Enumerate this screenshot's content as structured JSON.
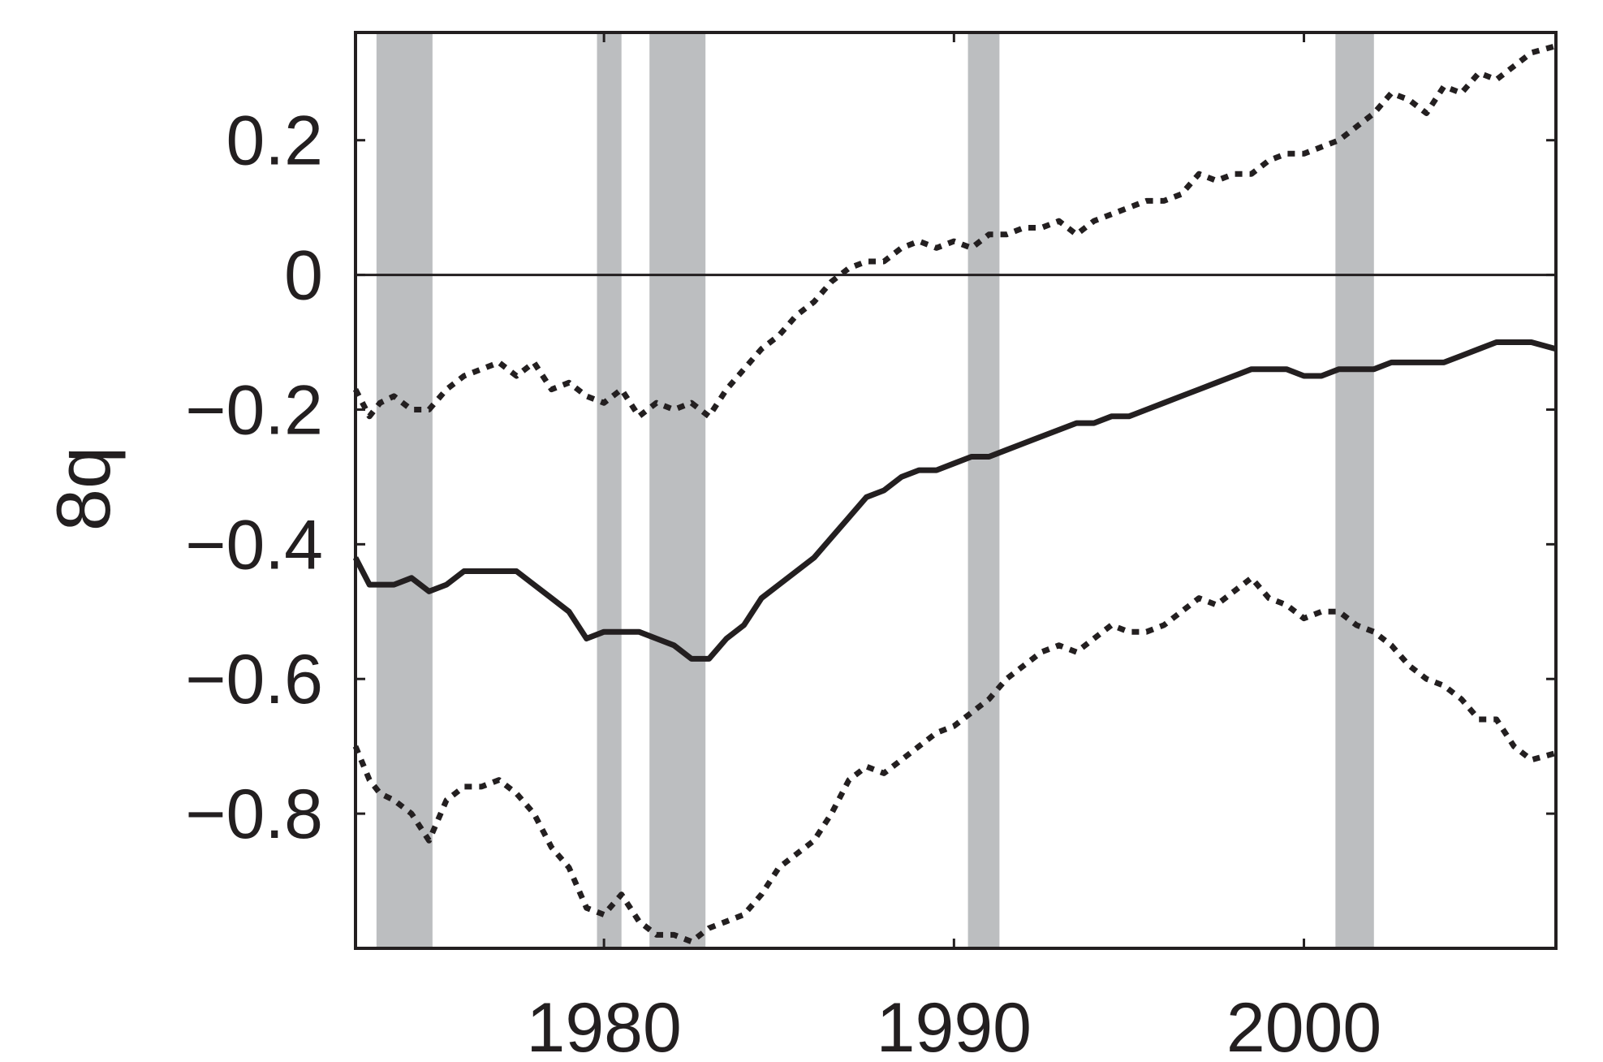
{
  "chart_data": {
    "type": "line",
    "title": "",
    "xlabel": "",
    "ylabel": "8q",
    "xlim": [
      1972.9,
      2007.2
    ],
    "ylim": [
      -1.0,
      0.36
    ],
    "x_ticks": [
      1980,
      1990,
      2000
    ],
    "x_tick_labels": [
      "1980",
      "1990",
      "2000"
    ],
    "y_ticks": [
      0.2,
      0,
      -0.2,
      -0.4,
      -0.6,
      -0.8
    ],
    "y_tick_labels": [
      "0.2",
      "0",
      "−0.2",
      "−0.4",
      "−0.6",
      "−0.8"
    ],
    "grid": false,
    "zero_line": true,
    "shaded_periods": [
      {
        "start": 1973.5,
        "end": 1975.1
      },
      {
        "start": 1979.8,
        "end": 1980.5
      },
      {
        "start": 1981.3,
        "end": 1982.9
      },
      {
        "start": 1990.4,
        "end": 1991.3
      },
      {
        "start": 2000.9,
        "end": 2002.0
      }
    ],
    "series": [
      {
        "style": "solid",
        "x": [
          1972.9,
          1973.3,
          1973.6,
          1974.0,
          1974.5,
          1975.0,
          1975.5,
          1976.0,
          1976.5,
          1977.0,
          1977.5,
          1978.0,
          1978.5,
          1979.0,
          1979.5,
          1980.0,
          1980.5,
          1981.0,
          1981.5,
          1982.0,
          1982.5,
          1983.0,
          1983.5,
          1984.0,
          1984.5,
          1985.0,
          1985.5,
          1986.0,
          1986.5,
          1987.0,
          1987.5,
          1988.0,
          1988.5,
          1989.0,
          1989.5,
          1990.0,
          1990.5,
          1991.0,
          1991.5,
          1992.0,
          1992.5,
          1993.0,
          1993.5,
          1994.0,
          1994.5,
          1995.0,
          1995.5,
          1996.0,
          1996.5,
          1997.0,
          1997.5,
          1998.0,
          1998.5,
          1999.0,
          1999.5,
          2000.0,
          2000.5,
          2001.0,
          2001.5,
          2002.0,
          2002.5,
          2003.0,
          2003.5,
          2004.0,
          2004.5,
          2005.0,
          2005.5,
          2006.0,
          2006.5,
          2007.2
        ],
        "y": [
          -0.42,
          -0.46,
          -0.46,
          -0.46,
          -0.45,
          -0.47,
          -0.46,
          -0.44,
          -0.44,
          -0.44,
          -0.44,
          -0.46,
          -0.48,
          -0.5,
          -0.54,
          -0.53,
          -0.53,
          -0.53,
          -0.54,
          -0.55,
          -0.57,
          -0.57,
          -0.54,
          -0.52,
          -0.48,
          -0.46,
          -0.44,
          -0.42,
          -0.39,
          -0.36,
          -0.33,
          -0.32,
          -0.3,
          -0.29,
          -0.29,
          -0.28,
          -0.27,
          -0.27,
          -0.26,
          -0.25,
          -0.24,
          -0.23,
          -0.22,
          -0.22,
          -0.21,
          -0.21,
          -0.2,
          -0.19,
          -0.18,
          -0.17,
          -0.16,
          -0.15,
          -0.14,
          -0.14,
          -0.14,
          -0.15,
          -0.15,
          -0.14,
          -0.14,
          -0.14,
          -0.13,
          -0.13,
          -0.13,
          -0.13,
          -0.12,
          -0.11,
          -0.1,
          -0.1,
          -0.1,
          -0.11
        ]
      },
      {
        "style": "dotted",
        "x": [
          1972.9,
          1973.3,
          1973.6,
          1974.0,
          1974.5,
          1975.0,
          1975.5,
          1976.0,
          1976.5,
          1977.0,
          1977.5,
          1978.0,
          1978.5,
          1979.0,
          1979.5,
          1980.0,
          1980.5,
          1981.0,
          1981.5,
          1982.0,
          1982.5,
          1983.0,
          1983.5,
          1984.0,
          1984.5,
          1985.0,
          1985.5,
          1986.0,
          1986.5,
          1987.0,
          1987.5,
          1988.0,
          1988.5,
          1989.0,
          1989.5,
          1990.0,
          1990.5,
          1991.0,
          1991.5,
          1992.0,
          1992.5,
          1993.0,
          1993.5,
          1994.0,
          1994.5,
          1995.0,
          1995.5,
          1996.0,
          1996.5,
          1997.0,
          1997.5,
          1998.0,
          1998.5,
          1999.0,
          1999.5,
          2000.0,
          2000.5,
          2001.0,
          2001.5,
          2002.0,
          2002.5,
          2003.0,
          2003.5,
          2004.0,
          2004.5,
          2005.0,
          2005.5,
          2006.0,
          2006.5,
          2007.2
        ],
        "y": [
          -0.17,
          -0.21,
          -0.19,
          -0.18,
          -0.2,
          -0.2,
          -0.17,
          -0.15,
          -0.14,
          -0.13,
          -0.15,
          -0.13,
          -0.17,
          -0.16,
          -0.18,
          -0.19,
          -0.17,
          -0.21,
          -0.19,
          -0.2,
          -0.19,
          -0.21,
          -0.17,
          -0.14,
          -0.11,
          -0.09,
          -0.06,
          -0.04,
          -0.01,
          0.01,
          0.02,
          0.02,
          0.04,
          0.05,
          0.04,
          0.05,
          0.04,
          0.06,
          0.06,
          0.07,
          0.07,
          0.08,
          0.06,
          0.08,
          0.09,
          0.1,
          0.11,
          0.11,
          0.12,
          0.15,
          0.14,
          0.15,
          0.15,
          0.17,
          0.18,
          0.18,
          0.19,
          0.2,
          0.22,
          0.24,
          0.27,
          0.26,
          0.24,
          0.28,
          0.27,
          0.3,
          0.29,
          0.31,
          0.33,
          0.34
        ]
      },
      {
        "style": "dotted",
        "x": [
          1972.9,
          1973.3,
          1973.6,
          1974.0,
          1974.5,
          1975.0,
          1975.5,
          1976.0,
          1976.5,
          1977.0,
          1977.5,
          1978.0,
          1978.5,
          1979.0,
          1979.5,
          1980.0,
          1980.5,
          1981.0,
          1981.5,
          1982.0,
          1982.5,
          1983.0,
          1983.5,
          1984.0,
          1984.5,
          1985.0,
          1985.5,
          1986.0,
          1986.5,
          1987.0,
          1987.5,
          1988.0,
          1988.5,
          1989.0,
          1989.5,
          1990.0,
          1990.5,
          1991.0,
          1991.5,
          1992.0,
          1992.5,
          1993.0,
          1993.5,
          1994.0,
          1994.5,
          1995.0,
          1995.5,
          1996.0,
          1996.5,
          1997.0,
          1997.5,
          1998.0,
          1998.5,
          1999.0,
          1999.5,
          2000.0,
          2000.5,
          2001.0,
          2001.5,
          2002.0,
          2002.5,
          2003.0,
          2003.5,
          2004.0,
          2004.5,
          2005.0,
          2005.5,
          2006.0,
          2006.5,
          2007.2
        ],
        "y": [
          -0.7,
          -0.75,
          -0.77,
          -0.78,
          -0.8,
          -0.84,
          -0.78,
          -0.76,
          -0.76,
          -0.75,
          -0.77,
          -0.8,
          -0.85,
          -0.88,
          -0.94,
          -0.95,
          -0.92,
          -0.96,
          -0.98,
          -0.98,
          -0.99,
          -0.97,
          -0.96,
          -0.95,
          -0.92,
          -0.88,
          -0.86,
          -0.84,
          -0.8,
          -0.75,
          -0.73,
          -0.74,
          -0.72,
          -0.7,
          -0.68,
          -0.67,
          -0.65,
          -0.63,
          -0.6,
          -0.58,
          -0.56,
          -0.55,
          -0.56,
          -0.54,
          -0.52,
          -0.53,
          -0.53,
          -0.52,
          -0.5,
          -0.48,
          -0.49,
          -0.47,
          -0.45,
          -0.48,
          -0.49,
          -0.51,
          -0.5,
          -0.5,
          -0.52,
          -0.53,
          -0.55,
          -0.58,
          -0.6,
          -0.61,
          -0.63,
          -0.66,
          -0.66,
          -0.7,
          -0.72,
          -0.71
        ]
      }
    ]
  },
  "colors": {
    "line": "#231f20",
    "shade": "#bcbec0",
    "axis": "#231f20",
    "background": "#ffffff"
  }
}
